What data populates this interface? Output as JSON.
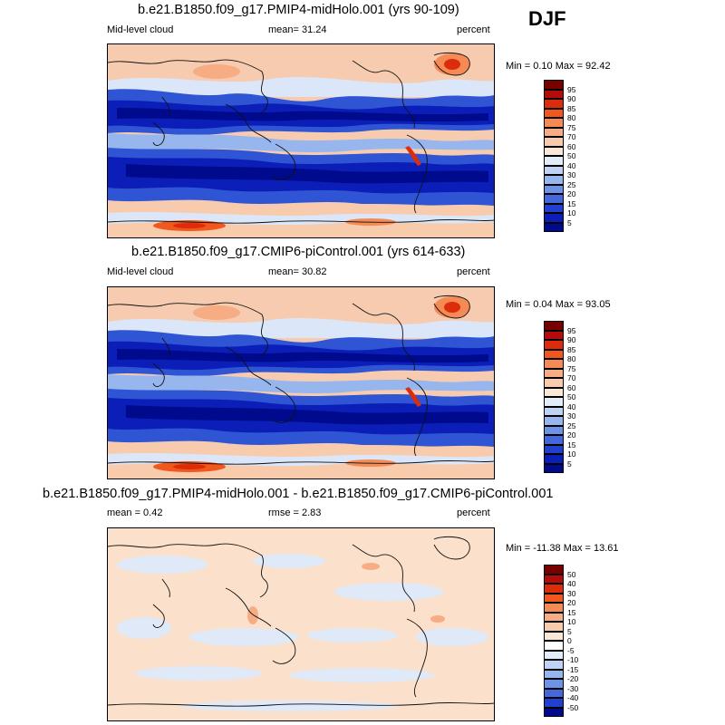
{
  "season": "DJF",
  "panels": [
    {
      "title": "b.e21.B1850.f09_g17.PMIP4-midHolo.001 (yrs 90-109)",
      "left_label": "Mid-level cloud",
      "stat_label": "mean=  31.24",
      "units": "percent",
      "minmax": "Min =  0.10 Max =  92.42"
    },
    {
      "title": "b.e21.B1850.f09_g17.CMIP6-piControl.001 (yrs 614-633)",
      "left_label": "Mid-level cloud",
      "stat_label": "mean=  30.82",
      "units": "percent",
      "minmax": "Min =  0.04 Max =  93.05"
    },
    {
      "title": "b.e21.B1850.f09_g17.PMIP4-midHolo.001 - b.e21.B1850.f09_g17.CMIP6-piControl.001",
      "left_label": "mean =   0.42",
      "stat_label": "rmse =   2.83",
      "units": "percent",
      "minmax": "Min = -11.38 Max =  13.61"
    }
  ],
  "colorbar_abs": {
    "labels": [
      "95",
      "90",
      "85",
      "80",
      "75",
      "70",
      "60",
      "50",
      "40",
      "30",
      "25",
      "20",
      "15",
      "10",
      "5"
    ],
    "colors": [
      "#7a0000",
      "#b40b0b",
      "#dc2c0c",
      "#f2581e",
      "#f58a55",
      "#f6ad84",
      "#f8cbac",
      "#fbe7d6",
      "#e2edf9",
      "#bfd4f4",
      "#97b6ee",
      "#6d93e6",
      "#4468db",
      "#2140cf",
      "#0b1fb8",
      "#000a8c"
    ]
  },
  "colorbar_diff": {
    "labels": [
      "50",
      "40",
      "30",
      "20",
      "15",
      "10",
      "5",
      "0",
      "-5",
      "-10",
      "-15",
      "-20",
      "-30",
      "-40",
      "-50"
    ],
    "colors": [
      "#7a0000",
      "#b40b0b",
      "#dc2c0c",
      "#f2581e",
      "#f58a55",
      "#f6ad84",
      "#f8cbac",
      "#fbe7d6",
      "#ffffff",
      "#e2edf9",
      "#bfd4f4",
      "#97b6ee",
      "#6d93e6",
      "#4468db",
      "#2140cf",
      "#000a8c"
    ]
  }
}
